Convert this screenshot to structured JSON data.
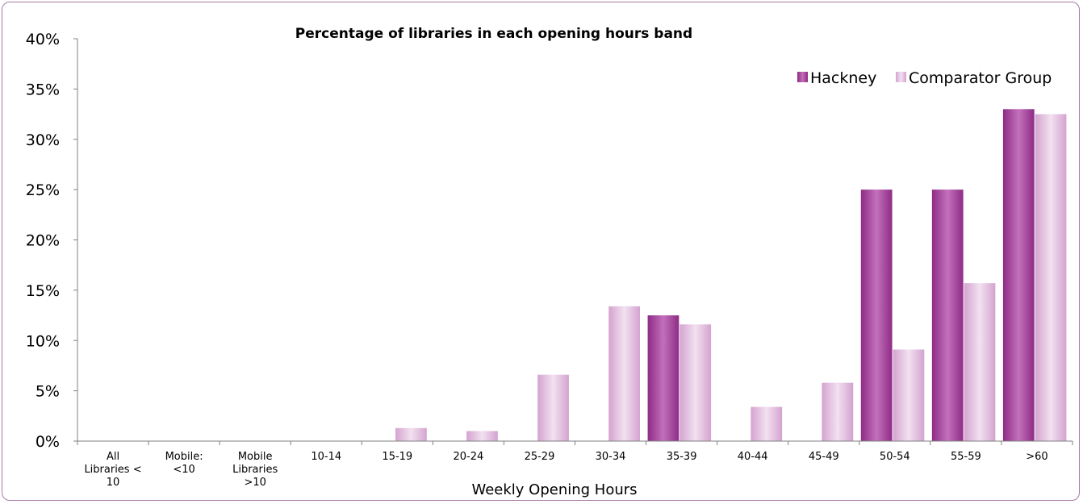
{
  "chart_data": {
    "type": "bar",
    "title": "Percentage of libraries in each opening hours band",
    "xlabel": "Weekly Opening Hours",
    "ylabel": "",
    "ylim": [
      0,
      40
    ],
    "yticks": [
      "0%",
      "5%",
      "10%",
      "15%",
      "20%",
      "25%",
      "30%",
      "35%",
      "40%"
    ],
    "categories": [
      [
        "All",
        "Libraries <",
        "10"
      ],
      [
        "Mobile:",
        "<10"
      ],
      [
        "Mobile",
        "Libraries",
        ">10"
      ],
      [
        "10-14"
      ],
      [
        "15-19"
      ],
      [
        "20-24"
      ],
      [
        "25-29"
      ],
      [
        "30-34"
      ],
      [
        "35-39"
      ],
      [
        "40-44"
      ],
      [
        "45-49"
      ],
      [
        "50-54"
      ],
      [
        "55-59"
      ],
      [
        ">60"
      ]
    ],
    "series": [
      {
        "name": "Hackney",
        "color": "#a7409e",
        "values": [
          0,
          0,
          0,
          0,
          0,
          0,
          0,
          0,
          12.5,
          0,
          0,
          25,
          25,
          33
        ]
      },
      {
        "name": "Comparator Group",
        "color": "#ddb4da",
        "values": [
          0,
          0,
          0,
          0,
          1.3,
          1.0,
          6.6,
          13.4,
          11.6,
          3.4,
          5.8,
          9.1,
          15.7,
          32.5
        ]
      }
    ],
    "legend_position": "top-right",
    "grid": false
  }
}
